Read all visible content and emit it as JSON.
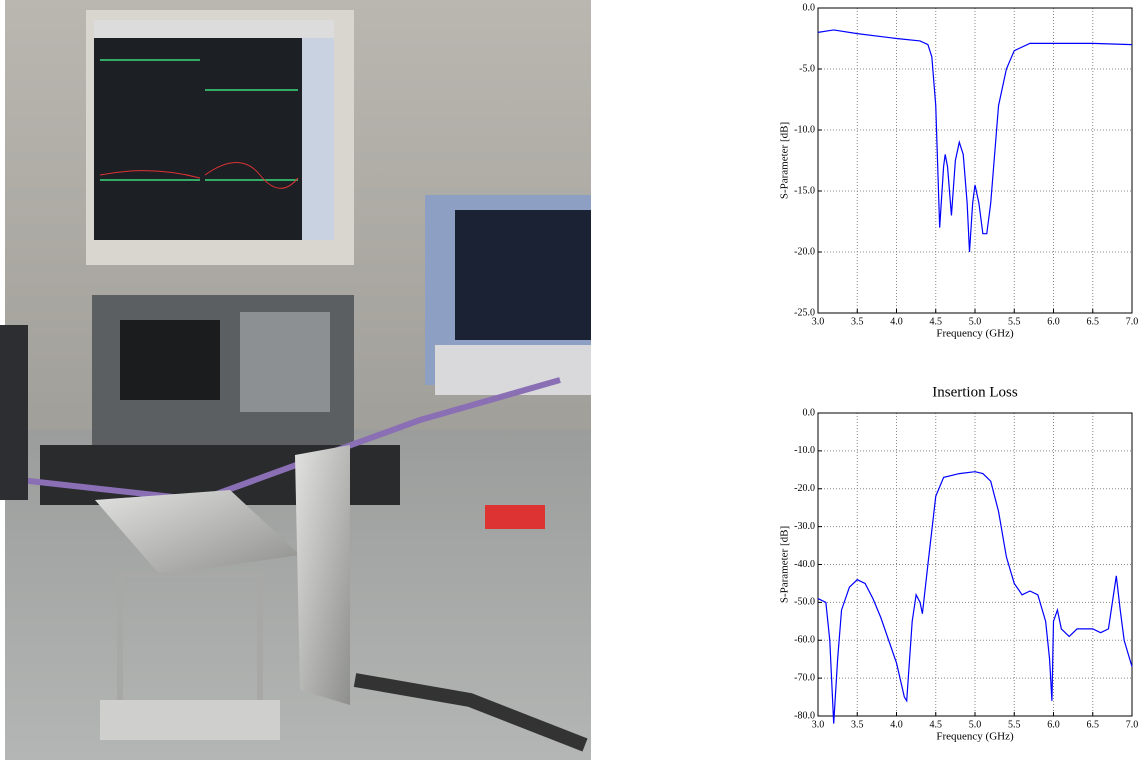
{
  "chart_data": [
    {
      "type": "line",
      "xlabel": "Frequency (GHz)",
      "ylabel": "S-Parameter [dB]",
      "xlim": [
        3.0,
        7.0
      ],
      "ylim": [
        -25,
        0
      ],
      "grid": true,
      "xticks": [
        {
          "value": 3,
          "label": "3.0"
        },
        3.5,
        {
          "value": 4,
          "label": "4.0"
        },
        4.5,
        {
          "value": 5,
          "label": "5.0"
        },
        5.5,
        {
          "value": 6,
          "label": "6.0"
        },
        6.5,
        {
          "value": 7,
          "label": "7.0"
        }
      ],
      "yticks": [
        {
          "value": 0,
          "label": "0.0"
        },
        {
          "value": -5,
          "label": "-5.0"
        },
        {
          "value": -10,
          "label": "-10.0"
        },
        {
          "value": -15,
          "label": "-15.0"
        },
        {
          "value": -20,
          "label": "-20.0"
        },
        {
          "value": -25,
          "label": "-25.0"
        }
      ],
      "x": [
        3.0,
        3.2,
        3.5,
        4.0,
        4.3,
        4.4,
        4.45,
        4.5,
        4.55,
        4.6,
        4.62,
        4.65,
        4.7,
        4.75,
        4.8,
        4.85,
        4.9,
        4.93,
        4.97,
        5.0,
        5.05,
        5.1,
        5.15,
        5.2,
        5.3,
        5.4,
        5.5,
        5.7,
        6.0,
        6.5,
        7.0
      ],
      "series": [
        {
          "color": "#0000ff",
          "values": [
            -2.0,
            -1.8,
            -2.1,
            -2.5,
            -2.7,
            -3.0,
            -4,
            -8,
            -18,
            -13,
            -12,
            -13,
            -17,
            -12.5,
            -11,
            -12,
            -16,
            -20,
            -16,
            -14.5,
            -16,
            -18.5,
            -18.5,
            -16,
            -8,
            -5,
            -3.5,
            -2.9,
            -2.9,
            -2.9,
            -3.0
          ]
        }
      ]
    },
    {
      "type": "line",
      "title": "Insertion Loss",
      "xlabel": "Frequency (GHz)",
      "ylabel": "S-Parameter [dB]",
      "xlim": [
        3.0,
        7.0
      ],
      "ylim": [
        -80,
        0
      ],
      "grid": true,
      "xticks": [
        {
          "value": 3,
          "label": "3.0"
        },
        3.5,
        {
          "value": 4,
          "label": "4.0"
        },
        4.5,
        {
          "value": 5,
          "label": "5.0"
        },
        5.5,
        {
          "value": 6,
          "label": "6.0"
        },
        6.5,
        {
          "value": 7,
          "label": "7.0"
        }
      ],
      "yticks": [
        {
          "value": 0,
          "label": "0.0"
        },
        {
          "value": -10,
          "label": "-10.0"
        },
        {
          "value": -20,
          "label": "-20.0"
        },
        {
          "value": -30,
          "label": "-30.0"
        },
        {
          "value": -40,
          "label": "-40.0"
        },
        {
          "value": -50,
          "label": "-50.0"
        },
        {
          "value": -60,
          "label": "-60.0"
        },
        {
          "value": -70,
          "label": "-70.0"
        },
        {
          "value": -80,
          "label": "-80.0"
        }
      ],
      "x": [
        3.0,
        3.1,
        3.15,
        3.2,
        3.25,
        3.3,
        3.4,
        3.5,
        3.6,
        3.7,
        3.8,
        3.9,
        4.0,
        4.1,
        4.13,
        4.2,
        4.25,
        4.3,
        4.33,
        4.4,
        4.5,
        4.6,
        4.8,
        5.0,
        5.1,
        5.2,
        5.3,
        5.4,
        5.5,
        5.6,
        5.7,
        5.8,
        5.9,
        5.95,
        5.98,
        6.0,
        6.05,
        6.1,
        6.2,
        6.3,
        6.5,
        6.6,
        6.7,
        6.75,
        6.8,
        6.85,
        6.9,
        7.0
      ],
      "series": [
        {
          "color": "#0000ff",
          "values": [
            -49,
            -50,
            -60,
            -82,
            -65,
            -52,
            -46,
            -44,
            -45,
            -49,
            -54,
            -60,
            -66,
            -75,
            -76,
            -55,
            -48,
            -50,
            -53,
            -40,
            -22,
            -17,
            -16,
            -15.5,
            -16,
            -18,
            -26,
            -38,
            -45,
            -48,
            -47,
            -48,
            -55,
            -65,
            -76,
            -55,
            -52,
            -57,
            -59,
            -57,
            -57,
            -58,
            -57,
            -50,
            -43,
            -52,
            -60,
            -67
          ]
        }
      ]
    }
  ]
}
